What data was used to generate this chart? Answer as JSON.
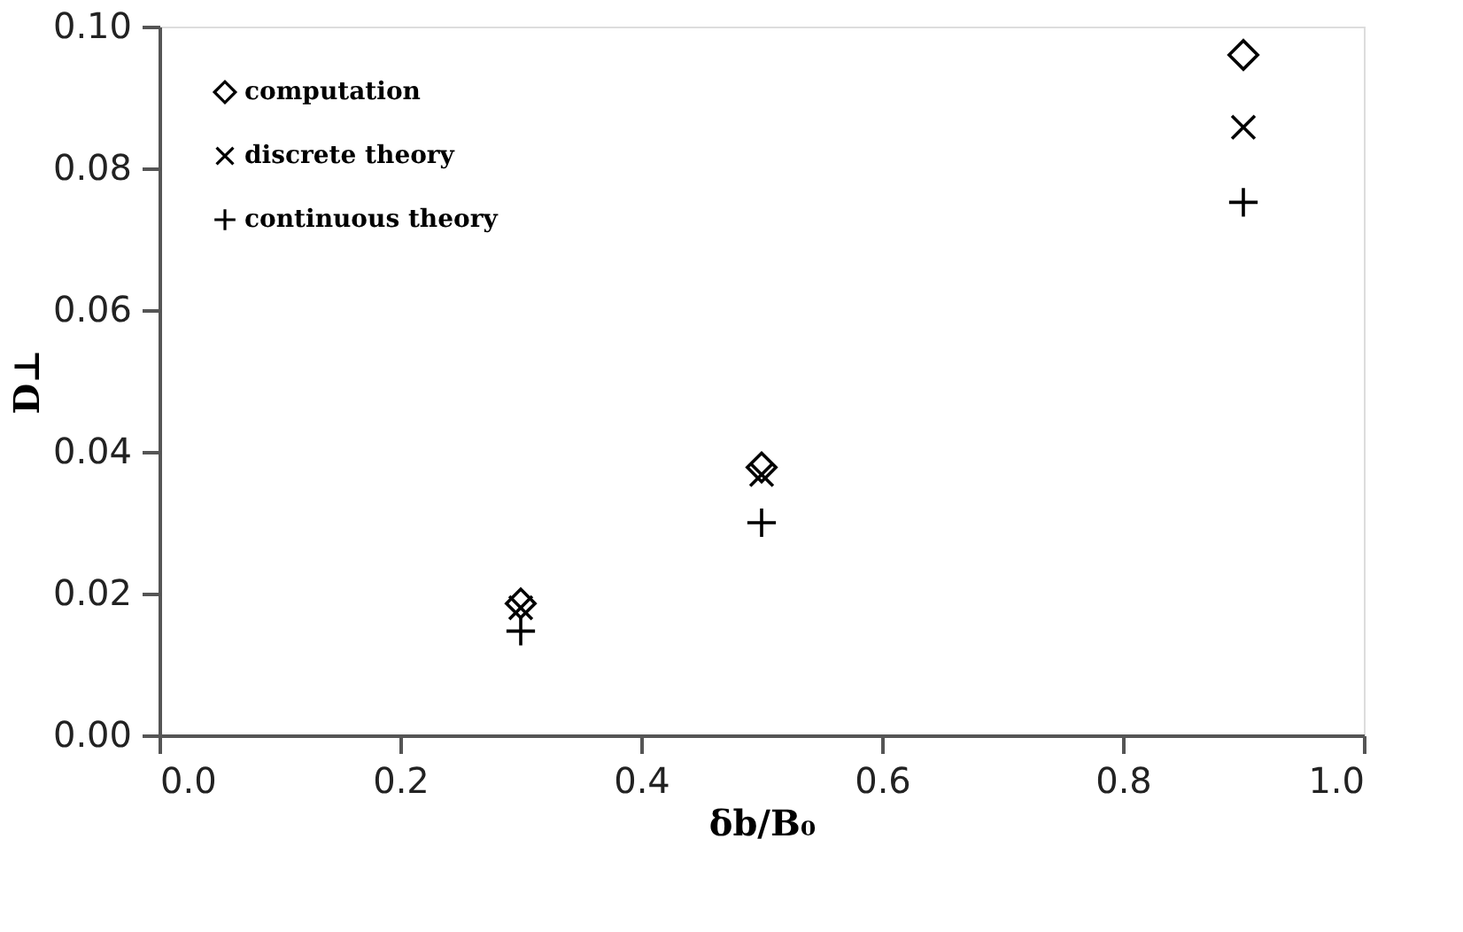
{
  "chart_data": {
    "type": "scatter",
    "xlabel": "δb/B₀",
    "ylabel": "D⊥",
    "x": [
      0.3,
      0.5,
      0.9
    ],
    "series": [
      {
        "name": "computation",
        "color": "#000000",
        "marker": "diamond",
        "values": [
          0.0186,
          0.0378,
          0.096
        ]
      },
      {
        "name": "discrete theory",
        "color": "#000000",
        "marker": "cross",
        "values": [
          0.018,
          0.0368,
          0.0858
        ]
      },
      {
        "name": "continuous theory",
        "color": "#000000",
        "marker": "plus",
        "values": [
          0.0147,
          0.03,
          0.0752
        ]
      }
    ],
    "xlim": [
      0.0,
      1.0
    ],
    "xticks": [
      {
        "value": 0,
        "label": "0.0"
      },
      0.2,
      0.4,
      0.6,
      0.8,
      {
        "value": 1,
        "label": "1.0"
      }
    ],
    "ylim": [
      0.0,
      0.1
    ],
    "yticks": [
      {
        "value": 0,
        "label": "0.00"
      },
      0.02,
      0.04,
      0.06,
      0.08,
      {
        "value": 0.1,
        "label": "0.10"
      }
    ],
    "legend": "top left",
    "grid": false
  }
}
